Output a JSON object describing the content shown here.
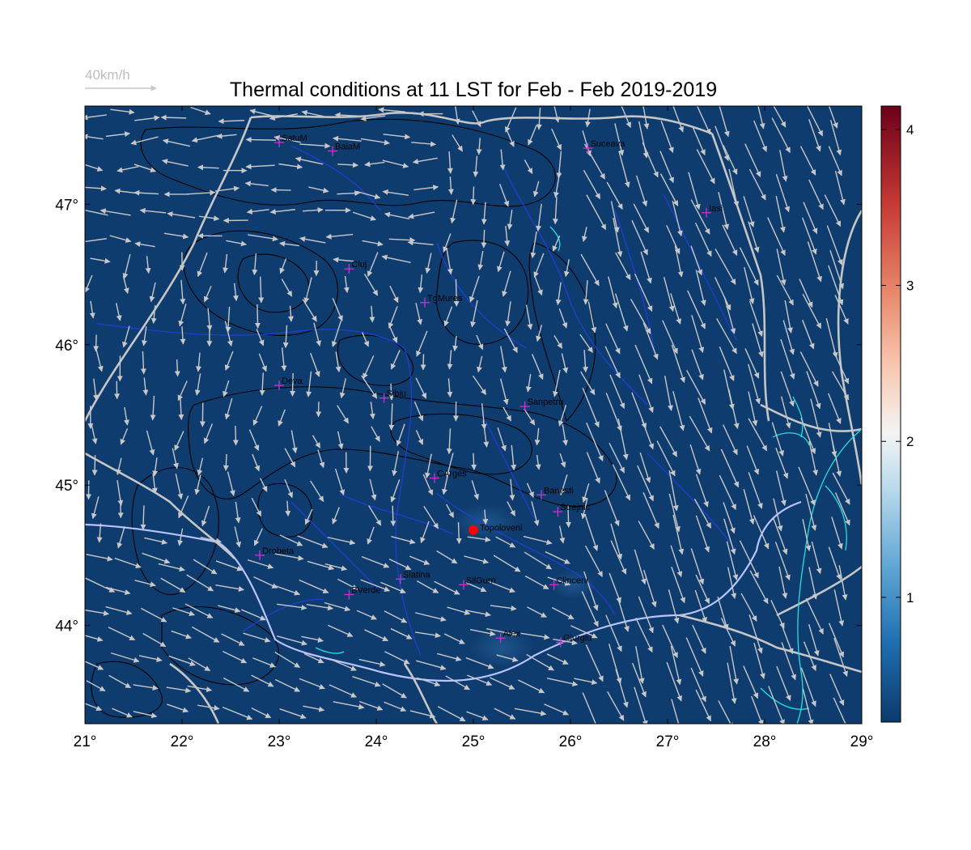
{
  "title": "Thermal conditions at 11 LST for Feb - Feb  2019-2019",
  "wind_legend": {
    "label": "40km/h"
  },
  "map": {
    "lon_range": [
      21,
      29
    ],
    "lat_range": [
      43.3,
      47.7
    ],
    "x_ticks": [
      "21°",
      "22°",
      "23°",
      "24°",
      "25°",
      "26°",
      "27°",
      "28°",
      "29°"
    ],
    "x_tick_values": [
      21,
      22,
      23,
      24,
      25,
      26,
      27,
      28,
      29
    ],
    "y_ticks": [
      "44°",
      "45°",
      "46°",
      "47°"
    ],
    "y_tick_values": [
      44,
      45,
      46,
      47
    ],
    "background_color": "#0f3c6e",
    "wind_arrow_color": "#c8c8c8",
    "country_border_color": "#c6c6c6",
    "river_color": "#1f3fd8",
    "sea_color": "#22e0e0",
    "station_marker_color": "#d12fd1",
    "highlight_marker_color": "#ff0000"
  },
  "stations": [
    {
      "name": "SatuM",
      "lon": 23.0,
      "lat": 47.44
    },
    {
      "name": "BaiaM",
      "lon": 23.55,
      "lat": 47.38
    },
    {
      "name": "Suceava",
      "lon": 26.18,
      "lat": 47.4
    },
    {
      "name": "Iasi",
      "lon": 27.4,
      "lat": 46.94
    },
    {
      "name": "Cluj",
      "lon": 23.72,
      "lat": 46.54
    },
    {
      "name": "TgMures",
      "lon": 24.5,
      "lat": 46.3
    },
    {
      "name": "Deva",
      "lon": 23.0,
      "lat": 45.71
    },
    {
      "name": "Sibiu",
      "lon": 24.08,
      "lat": 45.62
    },
    {
      "name": "Sanpetru",
      "lon": 25.53,
      "lat": 45.56
    },
    {
      "name": "CArges",
      "lon": 24.6,
      "lat": 45.05
    },
    {
      "name": "Banesti",
      "lon": 25.7,
      "lat": 44.93
    },
    {
      "name": "Strejnic",
      "lon": 25.87,
      "lat": 44.81
    },
    {
      "name": "Drobeta",
      "lon": 22.8,
      "lat": 44.5
    },
    {
      "name": "Slatina",
      "lon": 24.25,
      "lat": 44.33
    },
    {
      "name": "SilGurn",
      "lon": 24.9,
      "lat": 44.29
    },
    {
      "name": "BVerde",
      "lon": 23.72,
      "lat": 44.22
    },
    {
      "name": "Clinceni",
      "lon": 25.83,
      "lat": 44.29
    },
    {
      "name": "Alex",
      "lon": 25.28,
      "lat": 43.91
    },
    {
      "name": "Giurgiu",
      "lon": 25.9,
      "lat": 43.88
    }
  ],
  "highlight_station": {
    "name": "Topoloveni",
    "lon": 25.0,
    "lat": 44.68
  },
  "colorbar": {
    "range": [
      0.2,
      4.15
    ],
    "ticks": [
      "1",
      "2",
      "3",
      "4"
    ],
    "tick_values": [
      1,
      2,
      3,
      4
    ],
    "colors": [
      "#0c3a6b",
      "#1f6fb0",
      "#5fa5d3",
      "#b9dbec",
      "#f4f4f4",
      "#f8c7ae",
      "#e8866a",
      "#c63a34",
      "#6b0119"
    ]
  }
}
